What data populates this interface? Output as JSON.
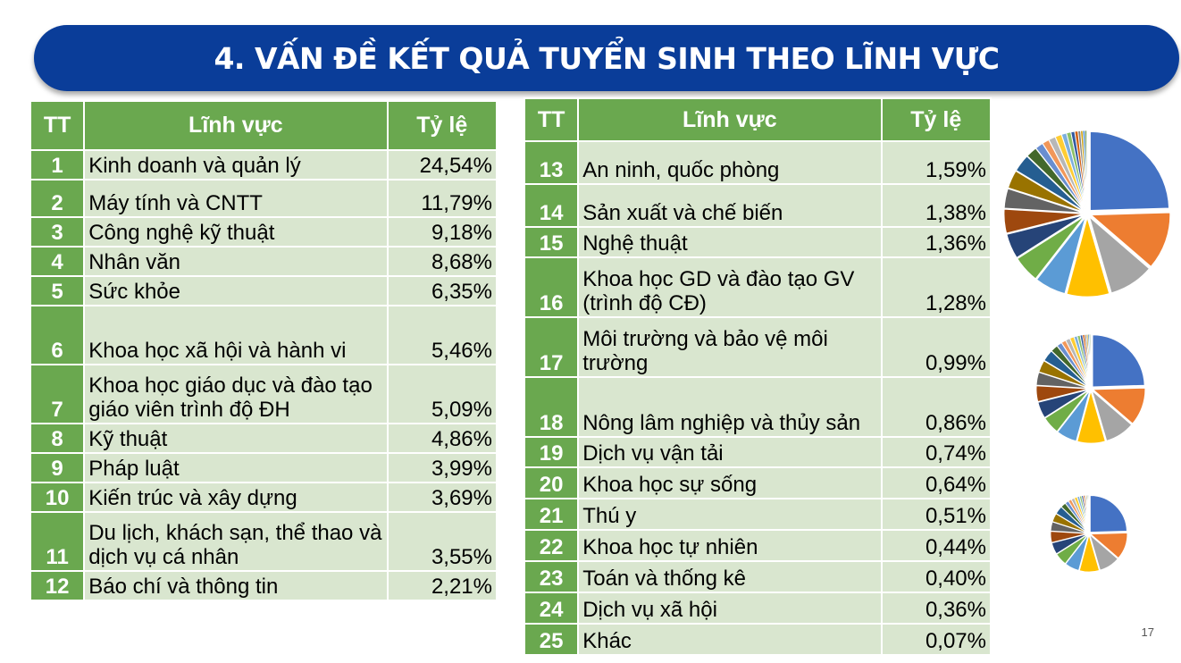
{
  "title": "4. VẤN ĐỀ KẾT QUẢ TUYỂN SINH THEO LĨNH VỰC",
  "table_left": {
    "headers": {
      "tt": "TT",
      "field": "Lĩnh vực",
      "rate": "Tỷ lệ"
    },
    "rows": [
      {
        "tt": "1",
        "field": "Kinh doanh và quản lý",
        "rate": "24,54%"
      },
      {
        "tt": "2",
        "field": "Máy tính và CNTT",
        "rate": "11,79%"
      },
      {
        "tt": "3",
        "field": "Công nghệ kỹ thuật",
        "rate": "9,18%"
      },
      {
        "tt": "4",
        "field": "Nhân văn",
        "rate": "8,68%"
      },
      {
        "tt": "5",
        "field": "Sức khỏe",
        "rate": "6,35%"
      },
      {
        "tt": "6",
        "field": "Khoa học xã hội và hành vi",
        "rate": "5,46%"
      },
      {
        "tt": "7",
        "field": "Khoa học giáo dục và đào tạo giáo viên trình độ ĐH",
        "rate": "5,09%"
      },
      {
        "tt": "8",
        "field": "Kỹ thuật",
        "rate": "4,86%"
      },
      {
        "tt": "9",
        "field": "Pháp luật",
        "rate": "3,99%"
      },
      {
        "tt": "10",
        "field": "Kiến trúc và xây dựng",
        "rate": "3,69%"
      },
      {
        "tt": "11",
        "field": "Du lịch, khách sạn, thể thao và dịch vụ cá nhân",
        "rate": "3,55%"
      },
      {
        "tt": "12",
        "field": "Báo chí và thông tin",
        "rate": "2,21%"
      }
    ]
  },
  "table_right": {
    "headers": {
      "tt": "TT",
      "field": "Lĩnh vực",
      "rate": "Tỷ lệ"
    },
    "rows": [
      {
        "tt": "13",
        "field": "An ninh, quốc phòng",
        "rate": "1,59%"
      },
      {
        "tt": "14",
        "field": "Sản xuất và chế biến",
        "rate": "1,38%"
      },
      {
        "tt": "15",
        "field": "Nghệ thuật",
        "rate": "1,36%"
      },
      {
        "tt": "16",
        "field": "Khoa học GD và đào tạo GV (trình độ CĐ)",
        "rate": "1,28%"
      },
      {
        "tt": "17",
        "field": "Môi trường và bảo vệ môi trường",
        "rate": "0,99%"
      },
      {
        "tt": "18",
        "field": "Nông lâm nghiệp và thủy sản",
        "rate": "0,86%"
      },
      {
        "tt": "19",
        "field": "Dịch vụ vận tải",
        "rate": "0,74%"
      },
      {
        "tt": "20",
        "field": "Khoa học sự sống",
        "rate": "0,64%"
      },
      {
        "tt": "21",
        "field": "Thú y",
        "rate": "0,51%"
      },
      {
        "tt": "22",
        "field": "Khoa học tự nhiên",
        "rate": "0,44%"
      },
      {
        "tt": "23",
        "field": "Toán và thống kê",
        "rate": "0,40%"
      },
      {
        "tt": "24",
        "field": "Dịch vụ xã hội",
        "rate": "0,36%"
      },
      {
        "tt": "25",
        "field": "Khác",
        "rate": "0,07%"
      }
    ]
  },
  "chart_data": {
    "type": "pie",
    "values": [
      24.54,
      11.79,
      9.18,
      8.68,
      6.35,
      5.46,
      5.09,
      4.86,
      3.99,
      3.69,
      3.55,
      2.21,
      1.59,
      1.38,
      1.36,
      1.28,
      0.99,
      0.86,
      0.74,
      0.64,
      0.51,
      0.44,
      0.4,
      0.36,
      0.07
    ],
    "colors": [
      "#4472c4",
      "#ed7d31",
      "#a5a5a5",
      "#ffc000",
      "#5b9bd5",
      "#70ad47",
      "#264478",
      "#9e480e",
      "#636363",
      "#997300",
      "#255e91",
      "#43682b",
      "#698ed0",
      "#f1975a",
      "#b7b7b7",
      "#ffcd33",
      "#7cafdd",
      "#8cc168",
      "#335aa1",
      "#d26012",
      "#848484",
      "#cc9a00",
      "#327dc2",
      "#5a8a39",
      "#8faadc"
    ]
  },
  "page_number": "17"
}
